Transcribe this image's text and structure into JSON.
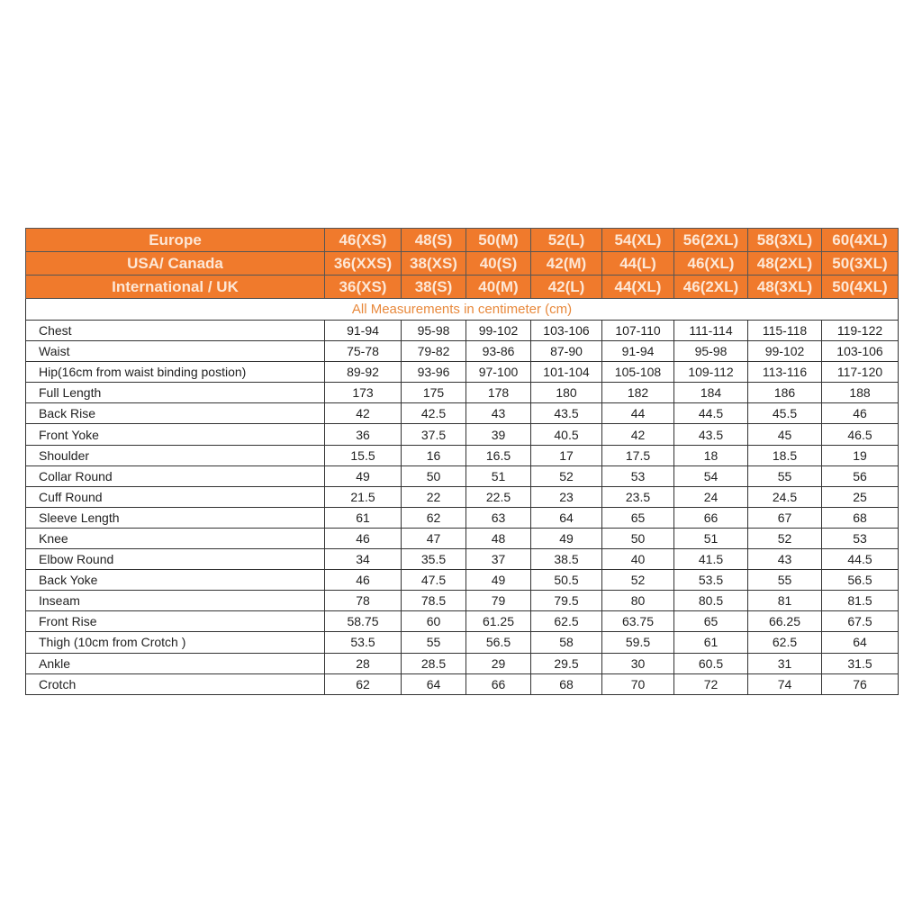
{
  "size_headers": [
    {
      "region": "Europe",
      "sizes": [
        "46(XS)",
        "48(S)",
        "50(M)",
        "52(L)",
        "54(XL)",
        "56(2XL)",
        "58(3XL)",
        "60(4XL)"
      ]
    },
    {
      "region": "USA/ Canada",
      "sizes": [
        "36(XXS)",
        "38(XS)",
        "40(S)",
        "42(M)",
        "44(L)",
        "46(XL)",
        "48(2XL)",
        "50(3XL)"
      ]
    },
    {
      "region": "International / UK",
      "sizes": [
        "36(XS)",
        "38(S)",
        "40(M)",
        "42(L)",
        "44(XL)",
        "46(2XL)",
        "48(3XL)",
        "50(4XL)"
      ]
    }
  ],
  "subtitle": "All Measurements in centimeter (cm)",
  "measurements": [
    {
      "label": "Chest",
      "values": [
        "91-94",
        "95-98",
        "99-102",
        "103-106",
        "107-110",
        "111-114",
        "115-118",
        "119-122"
      ]
    },
    {
      "label": "Waist",
      "values": [
        "75-78",
        "79-82",
        "93-86",
        "87-90",
        "91-94",
        "95-98",
        "99-102",
        "103-106"
      ]
    },
    {
      "label": "Hip(16cm from waist binding postion)",
      "values": [
        "89-92",
        "93-96",
        "97-100",
        "101-104",
        "105-108",
        "109-112",
        "113-116",
        "117-120"
      ]
    },
    {
      "label": "Full Length",
      "values": [
        "173",
        "175",
        "178",
        "180",
        "182",
        "184",
        "186",
        "188"
      ]
    },
    {
      "label": "Back Rise",
      "values": [
        "42",
        "42.5",
        "43",
        "43.5",
        "44",
        "44.5",
        "45.5",
        "46"
      ]
    },
    {
      "label": "Front Yoke",
      "values": [
        "36",
        "37.5",
        "39",
        "40.5",
        "42",
        "43.5",
        "45",
        "46.5"
      ]
    },
    {
      "label": "Shoulder",
      "values": [
        "15.5",
        "16",
        "16.5",
        "17",
        "17.5",
        "18",
        "18.5",
        "19"
      ]
    },
    {
      "label": "Collar Round",
      "values": [
        "49",
        "50",
        "51",
        "52",
        "53",
        "54",
        "55",
        "56"
      ]
    },
    {
      "label": "Cuff Round",
      "values": [
        "21.5",
        "22",
        "22.5",
        "23",
        "23.5",
        "24",
        "24.5",
        "25"
      ]
    },
    {
      "label": "Sleeve Length",
      "values": [
        "61",
        "62",
        "63",
        "64",
        "65",
        "66",
        "67",
        "68"
      ]
    },
    {
      "label": "Knee",
      "values": [
        "46",
        "47",
        "48",
        "49",
        "50",
        "51",
        "52",
        "53"
      ]
    },
    {
      "label": "Elbow Round",
      "values": [
        "34",
        "35.5",
        "37",
        "38.5",
        "40",
        "41.5",
        "43",
        "44.5"
      ]
    },
    {
      "label": "Back Yoke",
      "values": [
        "46",
        "47.5",
        "49",
        "50.5",
        "52",
        "53.5",
        "55",
        "56.5"
      ]
    },
    {
      "label": "Inseam",
      "values": [
        "78",
        "78.5",
        "79",
        "79.5",
        "80",
        "80.5",
        "81",
        "81.5"
      ]
    },
    {
      "label": "Front Rise",
      "values": [
        "58.75",
        "60",
        "61.25",
        "62.5",
        "63.75",
        "65",
        "66.25",
        "67.5"
      ]
    },
    {
      "label": "Thigh (10cm from Crotch )",
      "values": [
        "53.5",
        "55",
        "56.5",
        "58",
        "59.5",
        "61",
        "62.5",
        "64"
      ]
    },
    {
      "label": "Ankle",
      "values": [
        "28",
        "28.5",
        "29",
        "29.5",
        "30",
        "60.5",
        "31",
        "31.5"
      ]
    },
    {
      "label": "Crotch",
      "values": [
        "62",
        "64",
        "66",
        "68",
        "70",
        "72",
        "74",
        "76"
      ]
    }
  ],
  "colors": {
    "header_bg": "#f07a2c",
    "header_text": "#fde7d6",
    "subtitle_text": "#e8893c"
  }
}
